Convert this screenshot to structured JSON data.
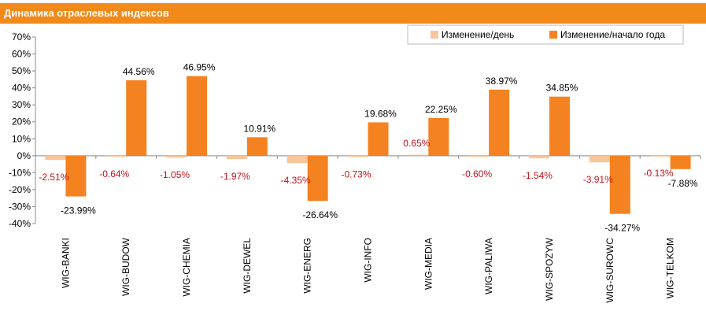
{
  "header": {
    "title": "Динамика отраслевых индексов"
  },
  "colors": {
    "header_bg": "#f28a1a",
    "daily": "#f9c59b",
    "ytd": "#f58220",
    "daily_label": "#c0141c",
    "ytd_label": "#000000"
  },
  "chart_data": {
    "type": "bar",
    "title": "Динамика отраслевых индексов",
    "categories": [
      "WIG-BANKI",
      "WIG-BUDOW",
      "WIG-CHEMIA",
      "WIG-DEWEL",
      "WIG-ENERG",
      "WIG-INFO",
      "WIG-MEDIA",
      "WIG-PALIWA",
      "WIG-SPOZYW",
      "WIG-SUROWC",
      "WIG-TELKOM"
    ],
    "series": [
      {
        "name": "Изменение/день",
        "values": [
          -2.51,
          -0.64,
          -1.05,
          -1.97,
          -4.35,
          -0.73,
          0.65,
          -0.6,
          -1.54,
          -3.91,
          -0.13
        ],
        "labels": [
          "-2.51%",
          "-0.64%",
          "-1.05%",
          "-1.97%",
          "-4.35%",
          "-0.73%",
          "0.65%",
          "-0.60%",
          "-1.54%",
          "-3.91%",
          "-0.13%"
        ]
      },
      {
        "name": "Изменение/начало года",
        "values": [
          -23.99,
          44.56,
          46.95,
          10.91,
          -26.64,
          19.68,
          22.25,
          38.97,
          34.85,
          -34.27,
          -7.88
        ],
        "labels": [
          "-23.99%",
          "44.56%",
          "46.95%",
          "10.91%",
          "-26.64%",
          "19.68%",
          "22.25%",
          "38.97%",
          "34.85%",
          "-34.27%",
          "-7.88%"
        ]
      }
    ],
    "ylim": [
      -40,
      70
    ],
    "yticks": [
      -40,
      -30,
      -20,
      -10,
      0,
      10,
      20,
      30,
      40,
      50,
      60,
      70
    ],
    "ytick_labels": [
      "-40%",
      "-30%",
      "-20%",
      "-10%",
      "0%",
      "10%",
      "20%",
      "30%",
      "40%",
      "50%",
      "60%",
      "70%"
    ],
    "grid": false,
    "legend_position": "top-right"
  }
}
